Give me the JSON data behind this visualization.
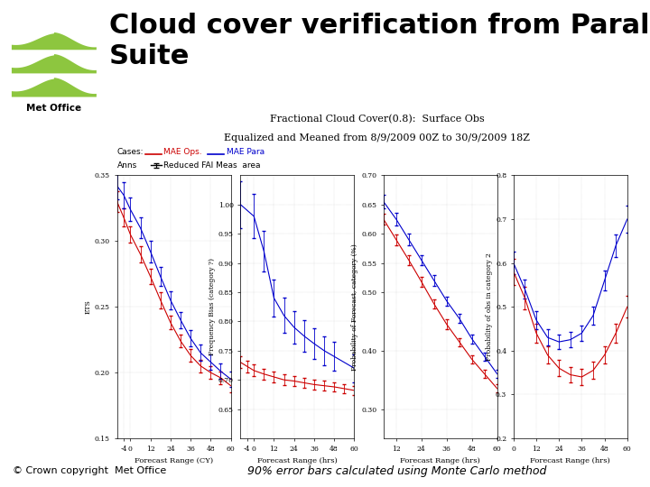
{
  "title": "Cloud cover verification from Parallel\nSuite",
  "title_fontsize": 22,
  "subtitle1": "Fractional Cloud Cover(0.8):  Surface Obs",
  "subtitle2": "Equalized and Meaned from 8/9/2009 00Z to 30/9/2009 18Z",
  "subtitle_fontsize": 8,
  "footer_left": "© Crown copyright  Met Office",
  "footer_right": "90% error bars calculated using Monte Carlo method",
  "footer_fontsize": 8,
  "bg_color": "#ffffff",
  "plot_bg": "#ffffff",
  "red_color": "#cc0000",
  "blue_color": "#0000cc",
  "wave_color": "#8dc63f",
  "legend_cases": "Cases:",
  "legend_anns": "Anns",
  "legend_red_label": "MAE Ops.",
  "legend_blue_label": "MAE Para",
  "legend_line2": "Reduced FAI Meas  area",
  "panel1": {
    "xlabel": "Forecast Range (CY)",
    "ylabel": "ETS",
    "xlim": [
      -8,
      60
    ],
    "ylim": [
      0.15,
      0.35
    ],
    "xticks": [
      -4,
      0,
      12,
      24,
      36,
      48,
      60
    ],
    "xtick_labels": [
      "-4",
      "0",
      "12",
      "24",
      "36",
      "48",
      "60"
    ],
    "yticks": [
      0.15,
      0.2,
      0.25,
      0.3,
      0.35
    ],
    "ytick_labels": [
      "0.15",
      "0.20",
      "0.25",
      "0.30",
      "0.35"
    ],
    "red_x": [
      -8,
      -4,
      0,
      6,
      12,
      18,
      24,
      30,
      36,
      42,
      48,
      54,
      60
    ],
    "red_y": [
      0.33,
      0.318,
      0.305,
      0.29,
      0.273,
      0.255,
      0.238,
      0.224,
      0.213,
      0.205,
      0.2,
      0.196,
      0.19
    ],
    "red_yerr": [
      0.008,
      0.007,
      0.006,
      0.006,
      0.006,
      0.006,
      0.005,
      0.005,
      0.005,
      0.005,
      0.005,
      0.005,
      0.005
    ],
    "blue_x": [
      -8,
      -4,
      0,
      6,
      12,
      18,
      24,
      30,
      36,
      42,
      48,
      54,
      60
    ],
    "blue_y": [
      0.342,
      0.335,
      0.324,
      0.31,
      0.292,
      0.273,
      0.255,
      0.24,
      0.226,
      0.215,
      0.208,
      0.201,
      0.195
    ],
    "blue_yerr": [
      0.01,
      0.01,
      0.009,
      0.008,
      0.008,
      0.007,
      0.007,
      0.006,
      0.006,
      0.006,
      0.006,
      0.006,
      0.006
    ]
  },
  "panel2": {
    "xlabel": "Forecast Range (hrs)",
    "ylabel": "Frequency Bias (category ?)",
    "xlim": [
      -8,
      60
    ],
    "ylim": [
      0.6,
      1.05
    ],
    "xticks": [
      -4,
      0,
      12,
      24,
      36,
      48,
      60
    ],
    "xtick_labels": [
      "-4",
      "0",
      "12",
      "24",
      "36",
      "48",
      "60"
    ],
    "yticks": [
      0.65,
      0.7,
      0.75,
      0.8,
      0.85,
      0.9,
      0.95,
      1.0
    ],
    "ytick_labels": [
      "0.65",
      "0.70",
      "0.75",
      "0.80",
      "0.85",
      "0.90",
      "0.95",
      "1.00"
    ],
    "red_x": [
      -8,
      -4,
      0,
      6,
      12,
      18,
      24,
      30,
      36,
      42,
      48,
      54,
      60
    ],
    "red_y": [
      0.73,
      0.723,
      0.716,
      0.71,
      0.705,
      0.7,
      0.698,
      0.695,
      0.692,
      0.69,
      0.688,
      0.685,
      0.682
    ],
    "red_yerr": [
      0.01,
      0.01,
      0.01,
      0.009,
      0.009,
      0.009,
      0.009,
      0.009,
      0.008,
      0.008,
      0.008,
      0.008,
      0.008
    ],
    "blue_x": [
      -8,
      0,
      6,
      12,
      18,
      24,
      30,
      36,
      42,
      48,
      60
    ],
    "blue_y": [
      1.0,
      0.98,
      0.92,
      0.84,
      0.81,
      0.79,
      0.775,
      0.762,
      0.75,
      0.74,
      0.72
    ],
    "blue_yerr": [
      0.04,
      0.038,
      0.035,
      0.032,
      0.03,
      0.028,
      0.027,
      0.026,
      0.025,
      0.025,
      0.024
    ]
  },
  "panel3": {
    "xlabel": "Forecast Range (hrs)",
    "ylabel": "Probability of Forecast, category (%)",
    "xlim": [
      6,
      60
    ],
    "ylim": [
      0.25,
      0.7
    ],
    "xticks": [
      12,
      24,
      36,
      48,
      60
    ],
    "xtick_labels": [
      "12",
      "24",
      "36",
      "48",
      "60"
    ],
    "yticks": [
      0.3,
      0.4,
      0.5,
      0.55,
      0.6,
      0.65,
      0.7
    ],
    "ytick_labels": [
      "0.30",
      "0.40",
      "0.50",
      "0.55",
      "0.60",
      "0.65",
      "0.70"
    ],
    "red_x": [
      6,
      12,
      18,
      24,
      30,
      36,
      42,
      48,
      54,
      60
    ],
    "red_y": [
      0.625,
      0.59,
      0.555,
      0.518,
      0.48,
      0.445,
      0.415,
      0.385,
      0.36,
      0.335
    ],
    "red_yerr": [
      0.01,
      0.009,
      0.009,
      0.008,
      0.008,
      0.008,
      0.007,
      0.007,
      0.007,
      0.007
    ],
    "blue_x": [
      6,
      12,
      18,
      24,
      30,
      36,
      42,
      48,
      54,
      60
    ],
    "blue_y": [
      0.655,
      0.625,
      0.59,
      0.555,
      0.52,
      0.485,
      0.455,
      0.42,
      0.39,
      0.36
    ],
    "blue_yerr": [
      0.012,
      0.011,
      0.01,
      0.009,
      0.009,
      0.008,
      0.008,
      0.008,
      0.007,
      0.007
    ]
  },
  "panel4": {
    "xlabel": "Forecast Range (hrs)",
    "ylabel": "Probability of obs in category 2",
    "xlim": [
      0,
      60
    ],
    "ylim": [
      0.2,
      0.8
    ],
    "xticks": [
      0,
      12,
      24,
      36,
      48,
      60
    ],
    "xtick_labels": [
      "0",
      "12",
      "24",
      "36",
      "48",
      "60"
    ],
    "yticks": [
      0.2,
      0.3,
      0.4,
      0.5,
      0.6,
      0.7,
      0.8
    ],
    "ytick_labels": [
      "0.2",
      "0.3",
      "0.4",
      "0.5",
      "0.6",
      "0.7",
      "0.8"
    ],
    "red_x": [
      0,
      6,
      12,
      18,
      24,
      30,
      36,
      42,
      48,
      54,
      60
    ],
    "red_y": [
      0.58,
      0.52,
      0.44,
      0.39,
      0.36,
      0.345,
      0.34,
      0.355,
      0.39,
      0.44,
      0.5
    ],
    "red_yerr": [
      0.03,
      0.025,
      0.022,
      0.02,
      0.018,
      0.018,
      0.018,
      0.019,
      0.02,
      0.022,
      0.025
    ],
    "blue_x": [
      0,
      6,
      12,
      18,
      24,
      30,
      36,
      42,
      48,
      54,
      60
    ],
    "blue_y": [
      0.6,
      0.54,
      0.47,
      0.43,
      0.42,
      0.425,
      0.44,
      0.48,
      0.56,
      0.64,
      0.7
    ],
    "blue_yerr": [
      0.025,
      0.022,
      0.02,
      0.018,
      0.017,
      0.017,
      0.018,
      0.02,
      0.023,
      0.026,
      0.03
    ]
  }
}
